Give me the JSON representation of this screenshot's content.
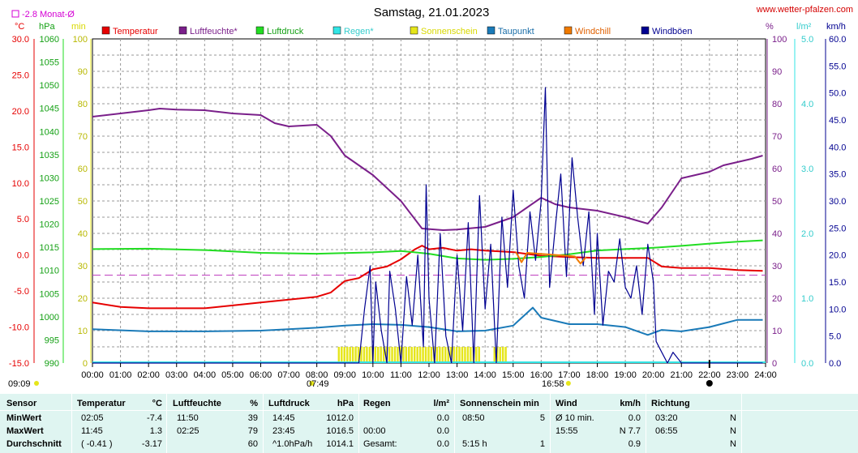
{
  "header": {
    "title": "Samstag, 21.01.2023",
    "site": "www.wetter-pfalzen.com",
    "month_avg": "-2.8 Monat-Ø"
  },
  "units": {
    "celsius": "°C",
    "hpa": "hPa",
    "min": "min",
    "percent": "%",
    "lm2": "l/m²",
    "kmh": "km/h"
  },
  "legend": [
    {
      "label": "Temperatur",
      "color": "#e60000",
      "text_color": "#e60000"
    },
    {
      "label": "Luftfeuchte*",
      "color": "#7a1f8a",
      "text_color": "#7a1f8a"
    },
    {
      "label": "Luftdruck",
      "color": "#22dd22",
      "text_color": "#14a014"
    },
    {
      "label": "Regen*",
      "color": "#33e6e6",
      "text_color": "#33cccc"
    },
    {
      "label": "Sonnenschein",
      "color": "#e6e61a",
      "text_color": "#d8d800"
    },
    {
      "label": "Taupunkt",
      "color": "#1a7ab8",
      "text_color": "#1a6ea8"
    },
    {
      "label": "Windchill",
      "color": "#f07a00",
      "text_color": "#e06000"
    },
    {
      "label": "Windböen",
      "color": "#000090",
      "text_color": "#000090"
    }
  ],
  "time_markers": {
    "sunrise": "07:49",
    "sunset": "16:58",
    "left": "09:09"
  },
  "chart_data": {
    "type": "line",
    "title": "Samstag, 21.01.2023",
    "x_ticks": [
      "00:00",
      "01:00",
      "02:00",
      "03:00",
      "04:00",
      "05:00",
      "06:00",
      "07:00",
      "08:00",
      "09:00",
      "10:00",
      "11:00",
      "12:00",
      "13:00",
      "14:00",
      "15:00",
      "16:00",
      "17:00",
      "18:00",
      "19:00",
      "20:00",
      "21:00",
      "22:00",
      "23:00",
      "24:00"
    ],
    "axes": {
      "temperature": {
        "label": "°C",
        "range": [
          -15,
          30
        ],
        "ticks": [
          "30.0",
          "25.0",
          "20.0",
          "15.0",
          "10.0",
          "5.0",
          "0.0",
          "-5.0",
          "-10.0",
          "-15.0"
        ]
      },
      "pressure": {
        "label": "hPa",
        "range": [
          990,
          1060
        ],
        "ticks": [
          "1060",
          "1055",
          "1050",
          "1045",
          "1040",
          "1035",
          "1030",
          "1025",
          "1020",
          "1015",
          "1010",
          "1005",
          "1000",
          "995",
          "990"
        ]
      },
      "sunshine": {
        "label": "min",
        "range": [
          0,
          100
        ],
        "ticks": [
          "100",
          "90",
          "80",
          "70",
          "60",
          "50",
          "40",
          "30",
          "20",
          "10",
          "0"
        ]
      },
      "humidity": {
        "label": "%",
        "range": [
          0,
          100
        ],
        "ticks": [
          "100",
          "90",
          "80",
          "70",
          "60",
          "50",
          "40",
          "30",
          "20",
          "10",
          "0"
        ]
      },
      "rain": {
        "label": "l/m²",
        "range": [
          0,
          5
        ],
        "ticks": [
          "5.0",
          "4.0",
          "3.0",
          "2.0",
          "1.0",
          "0.0"
        ]
      },
      "wind": {
        "label": "km/h",
        "range": [
          0,
          60
        ],
        "ticks": [
          "60.0",
          "55.0",
          "50.0",
          "45.0",
          "40.0",
          "35.0",
          "30.0",
          "25.0",
          "20.0",
          "15.0",
          "10.0",
          "5.0",
          "0.0"
        ]
      }
    },
    "grid": true,
    "month_avg_temp": -2.8,
    "series": [
      {
        "name": "Temperatur",
        "axis": "temperature",
        "color": "#e60000",
        "points": [
          [
            0,
            -6.6
          ],
          [
            1,
            -7.2
          ],
          [
            2,
            -7.4
          ],
          [
            3,
            -7.4
          ],
          [
            4,
            -7.4
          ],
          [
            5,
            -7.0
          ],
          [
            6,
            -6.6
          ],
          [
            7,
            -6.2
          ],
          [
            8,
            -5.8
          ],
          [
            8.5,
            -5.2
          ],
          [
            9,
            -3.6
          ],
          [
            9.5,
            -3.2
          ],
          [
            10,
            -2.0
          ],
          [
            10.5,
            -1.6
          ],
          [
            11,
            -0.6
          ],
          [
            11.5,
            0.8
          ],
          [
            11.75,
            1.3
          ],
          [
            12,
            0.8
          ],
          [
            12.5,
            1.0
          ],
          [
            13,
            0.6
          ],
          [
            13.5,
            0.8
          ],
          [
            14,
            0.6
          ],
          [
            15,
            0.4
          ],
          [
            16,
            -0.1
          ],
          [
            17,
            -0.3
          ],
          [
            18,
            -0.4
          ],
          [
            19,
            -0.4
          ],
          [
            19.8,
            -0.4
          ],
          [
            20.3,
            -1.6
          ],
          [
            21,
            -1.8
          ],
          [
            22,
            -1.8
          ],
          [
            23,
            -2.1
          ],
          [
            23.9,
            -2.2
          ]
        ]
      },
      {
        "name": "Luftfeuchte*",
        "axis": "humidity",
        "color": "#7a1f8a",
        "points": [
          [
            0,
            76
          ],
          [
            1,
            77
          ],
          [
            2,
            78
          ],
          [
            2.4,
            78.5
          ],
          [
            3,
            78.2
          ],
          [
            4,
            78
          ],
          [
            5,
            77
          ],
          [
            6,
            76.5
          ],
          [
            6.5,
            74
          ],
          [
            7,
            73
          ],
          [
            8,
            73.5
          ],
          [
            8.5,
            70
          ],
          [
            9,
            64
          ],
          [
            10,
            58
          ],
          [
            11,
            50
          ],
          [
            11.75,
            41.5
          ],
          [
            12.5,
            41
          ],
          [
            13,
            41.2
          ],
          [
            14,
            42
          ],
          [
            15,
            45
          ],
          [
            15.5,
            48
          ],
          [
            16,
            51
          ],
          [
            16.5,
            49
          ],
          [
            17,
            48
          ],
          [
            18,
            47
          ],
          [
            19,
            45
          ],
          [
            19.8,
            43
          ],
          [
            20.3,
            48
          ],
          [
            21,
            57
          ],
          [
            22,
            59
          ],
          [
            22.5,
            61
          ],
          [
            23,
            62
          ],
          [
            23.5,
            63
          ],
          [
            23.9,
            64
          ]
        ]
      },
      {
        "name": "Luftdruck",
        "axis": "pressure",
        "color": "#22dd22",
        "points": [
          [
            0,
            1014.6
          ],
          [
            2,
            1014.7
          ],
          [
            4,
            1014.4
          ],
          [
            6,
            1013.8
          ],
          [
            8,
            1013.6
          ],
          [
            10,
            1013.9
          ],
          [
            11,
            1014.2
          ],
          [
            12,
            1013.6
          ],
          [
            13,
            1012.6
          ],
          [
            14,
            1012.3
          ],
          [
            15,
            1012.5
          ],
          [
            16,
            1012.9
          ],
          [
            17,
            1013.5
          ],
          [
            18,
            1014.3
          ],
          [
            19,
            1014.6
          ],
          [
            20,
            1014.9
          ],
          [
            21,
            1015.3
          ],
          [
            22,
            1015.8
          ],
          [
            23,
            1016.2
          ],
          [
            23.9,
            1016.5
          ]
        ]
      },
      {
        "name": "Taupunkt",
        "axis": "temperature",
        "color": "#1a7ab8",
        "points": [
          [
            0,
            -10.3
          ],
          [
            2,
            -10.6
          ],
          [
            4,
            -10.6
          ],
          [
            6,
            -10.5
          ],
          [
            8,
            -10.1
          ],
          [
            9,
            -9.8
          ],
          [
            10,
            -9.6
          ],
          [
            11,
            -9.7
          ],
          [
            12,
            -10.0
          ],
          [
            13,
            -10.6
          ],
          [
            14,
            -10.5
          ],
          [
            15,
            -9.8
          ],
          [
            15.7,
            -7.3
          ],
          [
            16,
            -8.7
          ],
          [
            17,
            -9.6
          ],
          [
            18,
            -9.6
          ],
          [
            19,
            -10.0
          ],
          [
            19.8,
            -11.1
          ],
          [
            20.3,
            -10.4
          ],
          [
            21,
            -10.6
          ],
          [
            22,
            -10.0
          ],
          [
            23,
            -9.0
          ],
          [
            23.9,
            -9.0
          ]
        ]
      },
      {
        "name": "Windböen",
        "axis": "wind",
        "color": "#000090",
        "points": [
          [
            0,
            0
          ],
          [
            9.5,
            0
          ],
          [
            9.7,
            10
          ],
          [
            9.9,
            18
          ],
          [
            10,
            0
          ],
          [
            10.1,
            15
          ],
          [
            10.3,
            6
          ],
          [
            10.5,
            0
          ],
          [
            10.6,
            17
          ],
          [
            10.8,
            10
          ],
          [
            11,
            0
          ],
          [
            11.2,
            16
          ],
          [
            11.4,
            7
          ],
          [
            11.6,
            20
          ],
          [
            11.8,
            3
          ],
          [
            11.9,
            33
          ],
          [
            12,
            12
          ],
          [
            12.2,
            0
          ],
          [
            12.4,
            24
          ],
          [
            12.6,
            5
          ],
          [
            12.8,
            0
          ],
          [
            13,
            20
          ],
          [
            13.2,
            6
          ],
          [
            13.4,
            26
          ],
          [
            13.6,
            0
          ],
          [
            13.8,
            31
          ],
          [
            14,
            10
          ],
          [
            14.2,
            22
          ],
          [
            14.4,
            0
          ],
          [
            14.6,
            27
          ],
          [
            14.8,
            14
          ],
          [
            15,
            32
          ],
          [
            15.2,
            18
          ],
          [
            15.4,
            12
          ],
          [
            15.6,
            28
          ],
          [
            15.8,
            19
          ],
          [
            16,
            30
          ],
          [
            16.15,
            51
          ],
          [
            16.3,
            14
          ],
          [
            16.5,
            25
          ],
          [
            16.7,
            35
          ],
          [
            16.9,
            16
          ],
          [
            17.1,
            38
          ],
          [
            17.3,
            27
          ],
          [
            17.5,
            18
          ],
          [
            17.7,
            28
          ],
          [
            17.9,
            9
          ],
          [
            18,
            24
          ],
          [
            18.2,
            7
          ],
          [
            18.4,
            17
          ],
          [
            18.6,
            15
          ],
          [
            18.8,
            23
          ],
          [
            19,
            14
          ],
          [
            19.2,
            12
          ],
          [
            19.4,
            18
          ],
          [
            19.6,
            9
          ],
          [
            19.8,
            22
          ],
          [
            20,
            15
          ],
          [
            20.1,
            4
          ],
          [
            20.3,
            2
          ],
          [
            20.5,
            0
          ],
          [
            20.7,
            2
          ],
          [
            21,
            0
          ],
          [
            23.9,
            0
          ]
        ]
      },
      {
        "name": "Windchill",
        "axis": "temperature",
        "color": "#f07a00",
        "points": [
          [
            15.1,
            0.4
          ],
          [
            15.3,
            -1.0
          ],
          [
            15.5,
            0.3
          ],
          [
            17.2,
            -0.2
          ],
          [
            17.4,
            -1.2
          ],
          [
            17.6,
            -0.3
          ]
        ]
      }
    ],
    "sunshine_bars": {
      "color": "#e6e61a",
      "from": 8.75,
      "to": 13.75,
      "extra": [
        [
          14.3,
          14.75
        ]
      ],
      "height_min": 5
    },
    "temp_axis_sample": {
      "zero_line_hpa": 1010
    }
  },
  "table": {
    "headers": [
      {
        "text": "Sensor"
      },
      {
        "text": "Temperatur"
      },
      {
        "text": "°C"
      },
      {
        "text": "Luftfeuchte"
      },
      {
        "text": "%"
      },
      {
        "text": "Luftdruck"
      },
      {
        "text": "hPa"
      },
      {
        "text": "Regen"
      },
      {
        "text": "l/m²"
      },
      {
        "text": "Sonnenschein min"
      },
      {
        "text": "Wind"
      },
      {
        "text": "km/h"
      },
      {
        "text": "Richtung"
      }
    ],
    "rows": [
      {
        "label": "MinWert",
        "cells": [
          "02:05",
          "-7.4",
          "11:50",
          "39",
          "14:45",
          "1012.0",
          "",
          "0.0",
          "08:50",
          "5",
          "Ø 10 min.",
          "0.0",
          "03:20",
          "N"
        ]
      },
      {
        "label": "MaxWert",
        "cells": [
          "11:45",
          "1.3",
          "02:25",
          "79",
          "23:45",
          "1016.5",
          "00:00",
          "0.0",
          "",
          "",
          "15:55",
          "N 7.7",
          "06:55",
          "N"
        ]
      },
      {
        "label": "Durchschnitt",
        "cells": [
          "( -0.41 )",
          "-3.17",
          "",
          "60",
          "^1.0hPa/h",
          "1014.1",
          "Gesamt:",
          "0.0",
          "5:15 h",
          "1",
          "",
          "0.9",
          "",
          "N"
        ]
      }
    ]
  }
}
